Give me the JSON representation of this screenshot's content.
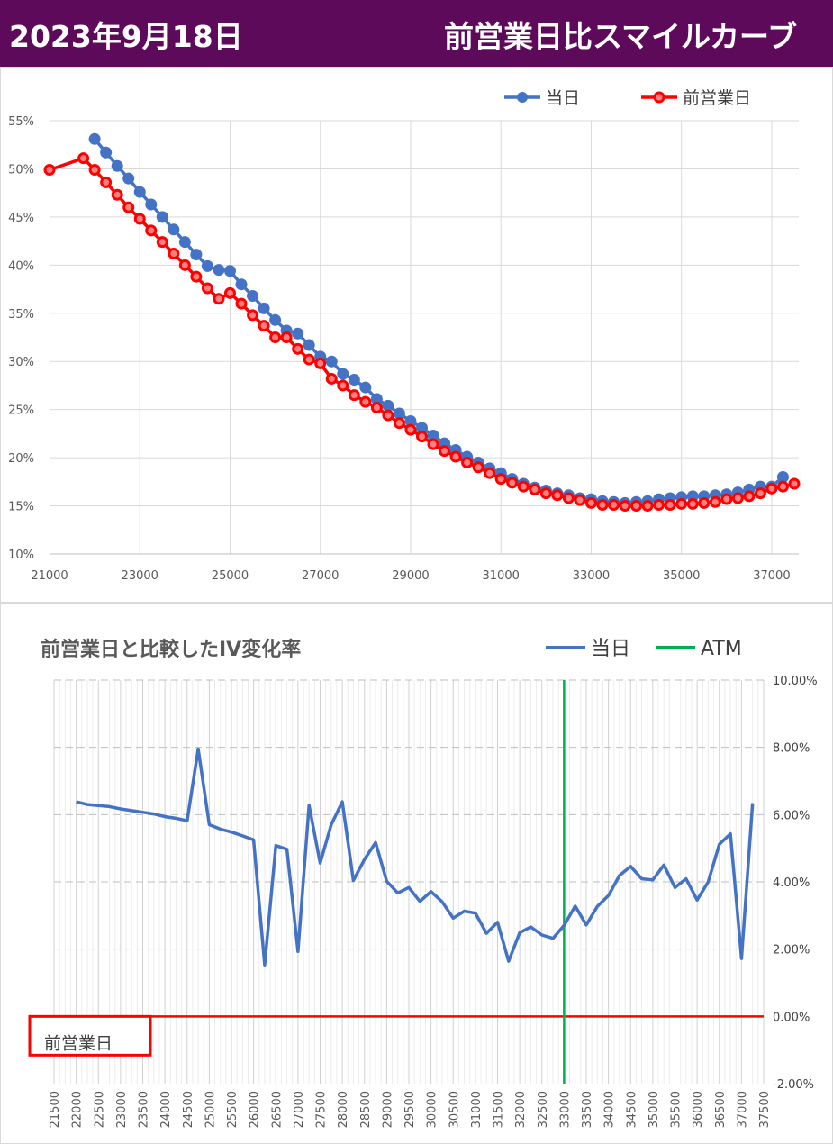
{
  "header": {
    "date": "2023年9月18日",
    "title": "前営業日比スマイルカーブ",
    "background": "#5e0a5b"
  },
  "chart_data": [
    {
      "type": "line",
      "title": "",
      "xlabel": "",
      "ylabel": "",
      "xlim": [
        21000,
        37600
      ],
      "ylim": [
        0.1,
        0.55
      ],
      "x_ticks": [
        "21000",
        "23000",
        "25000",
        "27000",
        "29000",
        "31000",
        "33000",
        "35000",
        "37000"
      ],
      "y_ticks": [
        "10%",
        "15%",
        "20%",
        "25%",
        "30%",
        "35%",
        "40%",
        "45%",
        "50%",
        "55%"
      ],
      "grid": true,
      "legend": "top-right",
      "series": [
        {
          "name": "当日",
          "color": "#4472c4",
          "x": [
            22000,
            22250,
            22500,
            22750,
            23000,
            23250,
            23500,
            23750,
            24000,
            24250,
            24500,
            24750,
            25000,
            25250,
            25500,
            25750,
            26000,
            26250,
            26500,
            26750,
            27000,
            27250,
            27500,
            27750,
            28000,
            28250,
            28500,
            28750,
            29000,
            29250,
            29500,
            29750,
            30000,
            30250,
            30500,
            30750,
            31000,
            31250,
            31500,
            31750,
            32000,
            32250,
            32500,
            32750,
            33000,
            33250,
            33500,
            33750,
            34000,
            34250,
            34500,
            34750,
            35000,
            35250,
            35500,
            35750,
            36000,
            36250,
            36500,
            36750,
            37000,
            37250
          ],
          "y": [
            0.531,
            0.517,
            0.503,
            0.49,
            0.476,
            0.463,
            0.45,
            0.437,
            0.424,
            0.411,
            0.399,
            0.395,
            0.394,
            0.38,
            0.368,
            0.355,
            0.343,
            0.332,
            0.329,
            0.317,
            0.305,
            0.3,
            0.287,
            0.281,
            0.273,
            0.261,
            0.254,
            0.246,
            0.238,
            0.231,
            0.223,
            0.215,
            0.208,
            0.201,
            0.195,
            0.189,
            0.184,
            0.178,
            0.173,
            0.169,
            0.166,
            0.163,
            0.161,
            0.158,
            0.157,
            0.155,
            0.154,
            0.153,
            0.154,
            0.155,
            0.157,
            0.158,
            0.159,
            0.16,
            0.16,
            0.161,
            0.162,
            0.164,
            0.167,
            0.17,
            0.17,
            0.18
          ]
        },
        {
          "name": "前営業日",
          "color": "#ff0000",
          "x": [
            21000,
            21750,
            22000,
            22250,
            22500,
            22750,
            23000,
            23250,
            23500,
            23750,
            24000,
            24250,
            24500,
            24750,
            25000,
            25250,
            25500,
            25750,
            26000,
            26250,
            26500,
            26750,
            27000,
            27250,
            27500,
            27750,
            28000,
            28250,
            28500,
            28750,
            29000,
            29250,
            29500,
            29750,
            30000,
            30250,
            30500,
            30750,
            31000,
            31250,
            31500,
            31750,
            32000,
            32250,
            32500,
            32750,
            33000,
            33250,
            33500,
            33750,
            34000,
            34250,
            34500,
            34750,
            35000,
            35250,
            35500,
            35750,
            36000,
            36250,
            36500,
            36750,
            37000,
            37250,
            37500
          ],
          "y": [
            0.499,
            0.511,
            0.499,
            0.486,
            0.473,
            0.46,
            0.448,
            0.436,
            0.424,
            0.412,
            0.4,
            0.388,
            0.376,
            0.365,
            0.371,
            0.36,
            0.348,
            0.337,
            0.325,
            0.325,
            0.313,
            0.302,
            0.298,
            0.282,
            0.275,
            0.265,
            0.258,
            0.252,
            0.244,
            0.236,
            0.229,
            0.222,
            0.214,
            0.207,
            0.201,
            0.195,
            0.19,
            0.184,
            0.178,
            0.174,
            0.17,
            0.167,
            0.163,
            0.161,
            0.158,
            0.156,
            0.153,
            0.151,
            0.151,
            0.15,
            0.15,
            0.15,
            0.151,
            0.151,
            0.152,
            0.152,
            0.153,
            0.154,
            0.157,
            0.158,
            0.16,
            0.163,
            0.168,
            0.17,
            0.173
          ]
        }
      ]
    },
    {
      "type": "line",
      "title": "前営業日と比較したIV変化率",
      "xlabel": "",
      "ylabel": "",
      "ylim": [
        -0.02,
        0.1
      ],
      "categories": [
        "21500",
        "22000",
        "22500",
        "23000",
        "23500",
        "24000",
        "24500",
        "25000",
        "25500",
        "26000",
        "26500",
        "27000",
        "27500",
        "28000",
        "28500",
        "29000",
        "29500",
        "30000",
        "30500",
        "31000",
        "31500",
        "32000",
        "32500",
        "33000",
        "33500",
        "34000",
        "34500",
        "35000",
        "35500",
        "36000",
        "36500",
        "37000",
        "37500"
      ],
      "y_ticks": [
        "-2.00%",
        "0.00%",
        "2.00%",
        "4.00%",
        "6.00%",
        "8.00%",
        "10.00%"
      ],
      "y_axis_side": "right",
      "grid": true,
      "legend": "top-right",
      "atm_strike": 33000,
      "zero_line_label": "前営業日",
      "zero_line_color": "#ff0000",
      "series": [
        {
          "name": "当日",
          "color": "#4472c4",
          "x": [
            22000,
            22250,
            22500,
            22750,
            23000,
            23250,
            23500,
            23750,
            24000,
            24250,
            24500,
            24750,
            25000,
            25250,
            25500,
            25750,
            26000,
            26250,
            26500,
            26750,
            27000,
            27250,
            27500,
            27750,
            28000,
            28250,
            28500,
            28750,
            29000,
            29250,
            29500,
            29750,
            30000,
            30250,
            30500,
            30750,
            31000,
            31250,
            31500,
            31750,
            32000,
            32250,
            32500,
            32750,
            33000,
            33250,
            33500,
            33750,
            34000,
            34250,
            34500,
            34750,
            35000,
            35250,
            35500,
            35750,
            36000,
            36250,
            36500,
            36750,
            37000,
            37250
          ],
          "y": [
            0.0638,
            0.063,
            0.0627,
            0.0624,
            0.0617,
            0.0612,
            0.0607,
            0.0602,
            0.0594,
            0.0589,
            0.0582,
            0.0795,
            0.057,
            0.0557,
            0.0548,
            0.0537,
            0.0525,
            0.0153,
            0.0508,
            0.0497,
            0.0193,
            0.0628,
            0.0456,
            0.057,
            0.0638,
            0.0404,
            0.0467,
            0.0517,
            0.0402,
            0.0367,
            0.0383,
            0.0342,
            0.0371,
            0.0341,
            0.0292,
            0.0313,
            0.0307,
            0.0247,
            0.028,
            0.0164,
            0.0249,
            0.0266,
            0.0242,
            0.0232,
            0.0271,
            0.0328,
            0.0272,
            0.0327,
            0.0359,
            0.0419,
            0.0446,
            0.0409,
            0.0406,
            0.045,
            0.0383,
            0.0409,
            0.0346,
            0.04,
            0.0512,
            0.0543,
            0.0172,
            0.0634
          ]
        },
        {
          "name": "ATM",
          "color": "#00b050"
        }
      ]
    }
  ]
}
